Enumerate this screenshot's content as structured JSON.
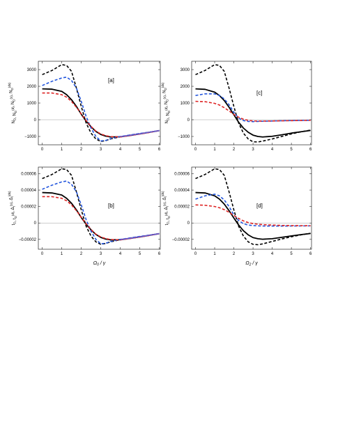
{
  "chart_data": [
    {
      "panel": "a",
      "type": "line",
      "tag": "[a]",
      "ylabel": "N_D, N_D^(d), N_D^(s), N_D^(ds)",
      "xlabel": "",
      "xlim": [
        -0.2,
        6.05
      ],
      "ylim": [
        -1500,
        3500
      ],
      "xticks": [
        "0",
        "1",
        "2",
        "3",
        "4",
        "5",
        "6"
      ],
      "yticks": [
        "−1000",
        "0",
        "1000",
        "2000",
        "3000"
      ],
      "ytick_values": [
        -1000,
        0,
        1000,
        2000,
        3000
      ],
      "x": [
        0,
        0.5,
        1,
        1.25,
        1.5,
        1.75,
        2,
        2.25,
        2.5,
        2.75,
        3,
        3.25,
        3.5,
        4,
        4.5,
        5,
        5.5,
        6
      ],
      "series": [
        {
          "values": [
            1850,
            1830,
            1700,
            1500,
            1200,
            800,
            330,
            -80,
            -420,
            -700,
            -880,
            -980,
            -1030,
            -1020,
            -940,
            -850,
            -750,
            -650
          ],
          "color": "#000000",
          "dash": "solid",
          "width": 1.8
        },
        {
          "values": [
            2700,
            2950,
            3300,
            3250,
            2900,
            1900,
            800,
            -200,
            -800,
            -1150,
            -1300,
            -1250,
            -1150,
            -1020,
            -920,
            -830,
            -740,
            -650
          ],
          "color": "#000000",
          "dash": "dashed",
          "width": 1.6
        },
        {
          "values": [
            2050,
            2300,
            2500,
            2550,
            2350,
            1900,
            1100,
            200,
            -500,
            -1000,
            -1270,
            -1240,
            -1130,
            -1000,
            -910,
            -820,
            -740,
            -650
          ],
          "color": "#2255dd",
          "dash": "dashed",
          "width": 1.6
        },
        {
          "values": [
            1600,
            1600,
            1500,
            1350,
            1100,
            750,
            350,
            -50,
            -400,
            -680,
            -850,
            -950,
            -1010,
            -1030,
            -950,
            -860,
            -760,
            -650
          ],
          "color": "#dd2222",
          "dash": "dashed",
          "width": 1.6
        },
        {
          "values": [
            null,
            null,
            null,
            null,
            null,
            null,
            null,
            null,
            null,
            null,
            null,
            null,
            null,
            -1010,
            -930,
            -840,
            -745,
            -650
          ],
          "color": "#6a5acd",
          "dash": "solid",
          "width": 1.6
        }
      ]
    },
    {
      "panel": "c",
      "type": "line",
      "tag": "[c]",
      "ylabel": "N_D, N_D^(d), N_D^(s), N_D^(ds)",
      "xlabel": "",
      "xlim": [
        -0.2,
        6.05
      ],
      "ylim": [
        -1500,
        3500
      ],
      "xticks": [
        "0",
        "1",
        "2",
        "3",
        "4",
        "5",
        "6"
      ],
      "yticks": [
        "−1000",
        "0",
        "1000",
        "2000",
        "3000"
      ],
      "ytick_values": [
        -1000,
        0,
        1000,
        2000,
        3000
      ],
      "x": [
        0,
        0.5,
        1,
        1.25,
        1.5,
        1.75,
        2,
        2.25,
        2.5,
        2.75,
        3,
        3.25,
        3.5,
        4,
        4.5,
        5,
        5.5,
        6
      ],
      "series": [
        {
          "values": [
            1850,
            1820,
            1650,
            1450,
            1150,
            750,
            300,
            -150,
            -500,
            -750,
            -920,
            -1000,
            -1030,
            -990,
            -900,
            -800,
            -720,
            -640
          ],
          "color": "#000000",
          "dash": "solid",
          "width": 1.8
        },
        {
          "values": [
            2700,
            2950,
            3300,
            3250,
            2900,
            1900,
            800,
            -200,
            -800,
            -1150,
            -1320,
            -1330,
            -1280,
            -1150,
            -1000,
            -850,
            -720,
            -620
          ],
          "color": "#000000",
          "dash": "dashed",
          "width": 1.6
        },
        {
          "values": [
            1450,
            1550,
            1550,
            1450,
            1250,
            900,
            450,
            100,
            -50,
            -100,
            -110,
            -100,
            -90,
            -75,
            -60,
            -50,
            -40,
            -30
          ],
          "color": "#2255dd",
          "dash": "dashed",
          "width": 1.6
        },
        {
          "values": [
            1100,
            1080,
            980,
            880,
            720,
            530,
            320,
            150,
            30,
            -40,
            -70,
            -80,
            -80,
            -75,
            -65,
            -55,
            -45,
            -35
          ],
          "color": "#dd2222",
          "dash": "dashed",
          "width": 1.6
        }
      ]
    },
    {
      "panel": "b",
      "type": "line",
      "tag": "[b]",
      "ylabel": "t_D, t_D^(d), Δ_t^(s), Δ_t^(ds)",
      "xlabel": "Ω_0 / γ",
      "xlim": [
        -0.2,
        6.05
      ],
      "ylim": [
        -3.2e-05,
        6.8e-05
      ],
      "xticks": [
        "0",
        "1",
        "2",
        "3",
        "4",
        "5",
        "6"
      ],
      "yticks": [
        "−0.00002",
        "0",
        "0.00002",
        "0.00004",
        "0.00006"
      ],
      "ytick_values": [
        -2e-05,
        0,
        2e-05,
        4e-05,
        6e-05
      ],
      "x": [
        0,
        0.5,
        1,
        1.25,
        1.5,
        1.75,
        2,
        2.25,
        2.5,
        2.75,
        3,
        3.25,
        3.5,
        4,
        4.5,
        5,
        5.5,
        6
      ],
      "series": [
        {
          "values": [
            3.7e-05,
            3.65e-05,
            3.4e-05,
            3e-05,
            2.4e-05,
            1.6e-05,
            6.6e-06,
            -1.6e-06,
            -8.4e-06,
            -1.4e-05,
            -1.76e-05,
            -1.96e-05,
            -2.06e-05,
            -2.04e-05,
            -1.88e-05,
            -1.7e-05,
            -1.5e-05,
            -1.3e-05
          ],
          "color": "#000000",
          "dash": "solid",
          "width": 1.8
        },
        {
          "values": [
            5.4e-05,
            5.9e-05,
            6.6e-05,
            6.5e-05,
            5.8e-05,
            3.8e-05,
            1.6e-05,
            -4e-06,
            -1.6e-05,
            -2.3e-05,
            -2.6e-05,
            -2.5e-05,
            -2.3e-05,
            -2.04e-05,
            -1.84e-05,
            -1.66e-05,
            -1.48e-05,
            -1.3e-05
          ],
          "color": "#000000",
          "dash": "dashed",
          "width": 1.6
        },
        {
          "values": [
            4.1e-05,
            4.6e-05,
            5e-05,
            5.1e-05,
            4.7e-05,
            3.8e-05,
            2.2e-05,
            4e-06,
            -1e-05,
            -2e-05,
            -2.54e-05,
            -2.48e-05,
            -2.26e-05,
            -2e-05,
            -1.82e-05,
            -1.64e-05,
            -1.48e-05,
            -1.3e-05
          ],
          "color": "#2255dd",
          "dash": "dashed",
          "width": 1.6
        },
        {
          "values": [
            3.2e-05,
            3.2e-05,
            3e-05,
            2.7e-05,
            2.2e-05,
            1.5e-05,
            7e-06,
            -1e-06,
            -8e-06,
            -1.36e-05,
            -1.7e-05,
            -1.9e-05,
            -2.02e-05,
            -2.06e-05,
            -1.9e-05,
            -1.72e-05,
            -1.52e-05,
            -1.3e-05
          ],
          "color": "#dd2222",
          "dash": "dashed",
          "width": 1.6
        },
        {
          "values": [
            null,
            null,
            null,
            null,
            null,
            null,
            null,
            null,
            null,
            null,
            null,
            null,
            null,
            -2.02e-05,
            -1.86e-05,
            -1.68e-05,
            -1.49e-05,
            -1.3e-05
          ],
          "color": "#6a5acd",
          "dash": "solid",
          "width": 1.6
        }
      ]
    },
    {
      "panel": "d",
      "type": "line",
      "tag": "[d]",
      "ylabel": "t_D, t_D^(d), Δ_t^(s), Δ_t^(ds)",
      "xlabel": "Ω_2 / γ",
      "xlim": [
        -0.2,
        6.05
      ],
      "ylim": [
        -3.2e-05,
        6.8e-05
      ],
      "xticks": [
        "0",
        "1",
        "2",
        "3",
        "4",
        "5",
        "6"
      ],
      "yticks": [
        "−0.00002",
        "0",
        "0.00002",
        "0.00004",
        "0.00006"
      ],
      "ytick_values": [
        -2e-05,
        0,
        2e-05,
        4e-05,
        6e-05
      ],
      "x": [
        0,
        0.5,
        1,
        1.25,
        1.5,
        1.75,
        2,
        2.25,
        2.5,
        2.75,
        3,
        3.25,
        3.5,
        4,
        4.5,
        5,
        5.5,
        6
      ],
      "series": [
        {
          "values": [
            3.7e-05,
            3.65e-05,
            3.3e-05,
            2.9e-05,
            2.3e-05,
            1.5e-05,
            6e-06,
            -2.5e-06,
            -9.5e-06,
            -1.45e-05,
            -1.78e-05,
            -1.92e-05,
            -1.98e-05,
            -1.92e-05,
            -1.75e-05,
            -1.58e-05,
            -1.42e-05,
            -1.28e-05
          ],
          "color": "#000000",
          "dash": "solid",
          "width": 1.8
        },
        {
          "values": [
            5.4e-05,
            5.9e-05,
            6.6e-05,
            6.5e-05,
            5.8e-05,
            3.8e-05,
            1.6e-05,
            -4e-06,
            -1.6e-05,
            -2.3e-05,
            -2.6e-05,
            -2.65e-05,
            -2.55e-05,
            -2.25e-05,
            -1.95e-05,
            -1.68e-05,
            -1.45e-05,
            -1.25e-05
          ],
          "color": "#000000",
          "dash": "dashed",
          "width": 1.6
        },
        {
          "values": [
            2.9e-05,
            3.3e-05,
            3.5e-05,
            3.3e-05,
            2.8e-05,
            2e-05,
            1e-05,
            3e-06,
            -1e-06,
            -2.5e-06,
            -3.2e-06,
            -3.5e-06,
            -3.7e-06,
            -3.8e-06,
            -3.8e-06,
            -3.7e-06,
            -3.6e-06,
            -3.5e-06
          ],
          "color": "#2255dd",
          "dash": "dashed",
          "width": 1.6
        },
        {
          "values": [
            2.2e-05,
            2.15e-05,
            2e-05,
            1.85e-05,
            1.62e-05,
            1.3e-05,
            9.2e-06,
            5.5e-06,
            2.5e-06,
            5e-07,
            -8e-07,
            -1.5e-06,
            -2e-06,
            -2.6e-06,
            -3e-06,
            -3.2e-06,
            -3.3e-06,
            -3.4e-06
          ],
          "color": "#dd2222",
          "dash": "dashed",
          "width": 1.6
        }
      ]
    }
  ]
}
